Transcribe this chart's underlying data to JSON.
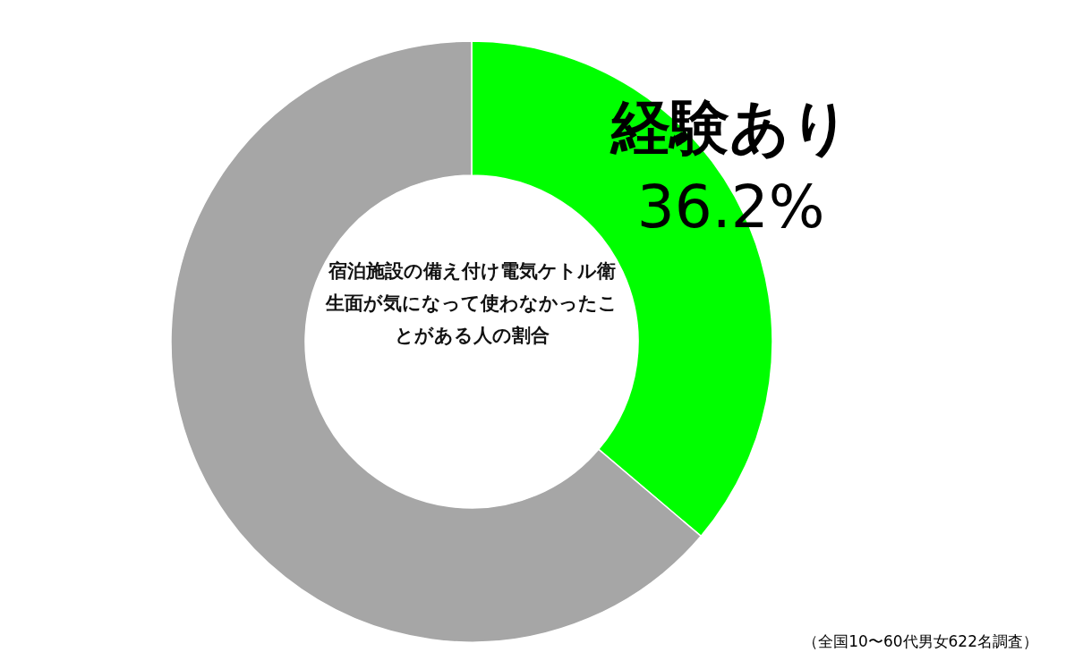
{
  "chart_data": {
    "type": "donut",
    "title": "宿泊施設の備え付け電気ケトル衛生面が気になって使わなかったことがある人の割合",
    "categories": [
      "経験あり",
      null
    ],
    "values": [
      36.2,
      63.8
    ],
    "colors": [
      "#00ff00",
      "#a6a6a6"
    ],
    "value_labels": [
      "36.2%",
      null
    ],
    "annotations": [
      "（全国10〜60代男女622名調査）"
    ]
  }
}
